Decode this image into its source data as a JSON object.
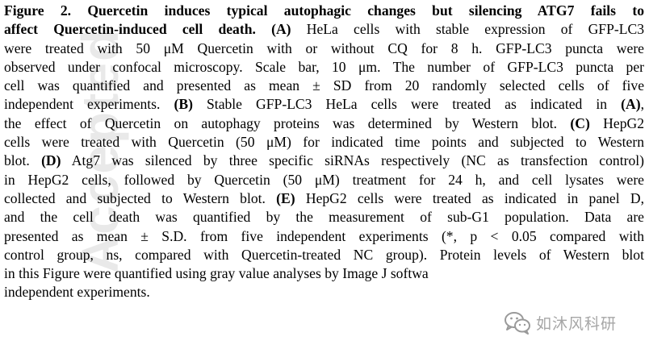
{
  "caption": {
    "lines": [
      [
        {
          "t": "Figure 2. Quercetin induces typical autophagic changes but silencing ATG7 fails to",
          "b": true
        }
      ],
      [
        {
          "t": "affect Quercetin-induced cell death. (A)",
          "b": true
        },
        {
          "t": " HeLa cells with stable expression of GFP-LC3",
          "b": false
        }
      ],
      [
        {
          "t": "were treated with 50 μM Quercetin with or without CQ for 8 h. GFP-LC3 puncta were",
          "b": false
        }
      ],
      [
        {
          "t": "observed under confocal microscopy. Scale bar, 10 μm. The number of GFP-LC3 puncta per",
          "b": false
        }
      ],
      [
        {
          "t": "cell was quantified and presented as mean ± SD from 20 randomly selected cells of five",
          "b": false
        }
      ],
      [
        {
          "t": "independent experiments. ",
          "b": false
        },
        {
          "t": "(B)",
          "b": true
        },
        {
          "t": " Stable GFP-LC3 HeLa cells were treated as indicated in ",
          "b": false
        },
        {
          "t": "(A)",
          "b": true
        },
        {
          "t": ",",
          "b": false
        }
      ],
      [
        {
          "t": "the effect of Quercetin on autophagy proteins was determined by Western blot. ",
          "b": false
        },
        {
          "t": "(C)",
          "b": true
        },
        {
          "t": " HepG2",
          "b": false
        }
      ],
      [
        {
          "t": "cells were treated with Quercetin (50 μM) for indicated time points and subjected to Western",
          "b": false
        }
      ],
      [
        {
          "t": "blot. ",
          "b": false
        },
        {
          "t": "(D)",
          "b": true
        },
        {
          "t": " Atg7 was silenced by three specific siRNAs respectively (NC as transfection control)",
          "b": false
        }
      ],
      [
        {
          "t": "in HepG2 cells, followed by Quercetin (50 μM) treatment for 24 h, and cell lysates were",
          "b": false
        }
      ],
      [
        {
          "t": "collected and subjected to Western blot. ",
          "b": false
        },
        {
          "t": "(E)",
          "b": true
        },
        {
          "t": " HepG2 cells were treated as indicated in panel D,",
          "b": false
        }
      ],
      [
        {
          "t": "and the cell death was quantified by the measurement of sub-G1 population. Data are",
          "b": false
        }
      ],
      [
        {
          "t": "presented as mean ± S.D. from five independent experiments (*, p < 0.05 compared with",
          "b": false
        }
      ],
      [
        {
          "t": "control group, ns, compared with Quercetin-treated NC group). Protein levels of Western blot",
          "b": false
        }
      ],
      [
        {
          "t": "in this Figure were quantified using gray value analyses by Image J softwa",
          "b": false
        }
      ],
      [
        {
          "t": "independent experiments.",
          "b": false
        }
      ]
    ]
  },
  "watermark": {
    "side_text": "Accepted",
    "wechat_text": "如沐风科研"
  },
  "colors": {
    "text": "#000000",
    "background": "#ffffff",
    "wechat_icon": "#9a9a9a"
  }
}
